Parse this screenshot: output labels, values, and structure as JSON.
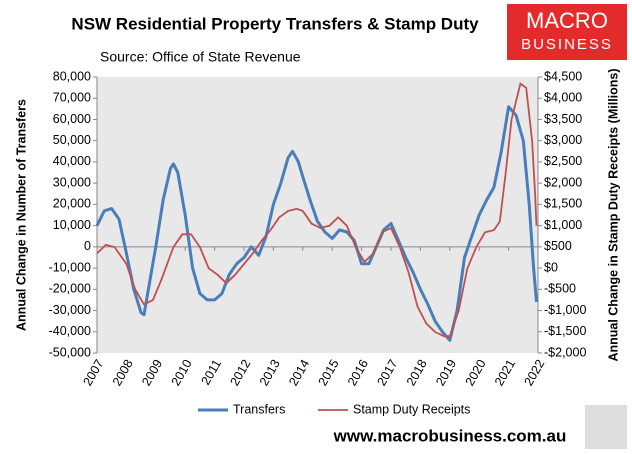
{
  "chart_data": {
    "type": "line",
    "title": "NSW Residential Property Transfers & Stamp Duty",
    "subtitle": "Source: Office of State Revenue",
    "y_label": "Annual Change in Number of Transfers",
    "y2_label": "Annual Change in Stamp Duty Receipts (Millions)",
    "logo": [
      "MACRO",
      "BUSINESS"
    ],
    "footer": "www.macrobusiness.com.au",
    "xlim": [
      2007,
      2022
    ],
    "xticks": [
      2007,
      2008,
      2009,
      2010,
      2011,
      2012,
      2013,
      2014,
      2015,
      2016,
      2017,
      2018,
      2019,
      2020,
      2021,
      2022
    ],
    "ylim": [
      -50000,
      80000
    ],
    "yticks": [
      {
        "value": -50000,
        "label": "-50,000"
      },
      {
        "value": -40000,
        "label": "-40,000"
      },
      {
        "value": -30000,
        "label": "-30,000"
      },
      {
        "value": -20000,
        "label": "-20,000"
      },
      {
        "value": -10000,
        "label": "-10,000"
      },
      0,
      {
        "value": 10000,
        "label": "10,000"
      },
      {
        "value": 20000,
        "label": "20,000"
      },
      {
        "value": 30000,
        "label": "30,000"
      },
      {
        "value": 40000,
        "label": "40,000"
      },
      {
        "value": 50000,
        "label": "50,000"
      },
      {
        "value": 60000,
        "label": "60,000"
      },
      {
        "value": 70000,
        "label": "70,000"
      },
      {
        "value": 80000,
        "label": "80,000"
      }
    ],
    "y2lim": [
      -2000,
      4500
    ],
    "y2ticks": [
      {
        "value": -2000,
        "label": "-$2,000"
      },
      {
        "value": -1500,
        "label": "-$1,500"
      },
      {
        "value": -1000,
        "label": "-$1,000"
      },
      {
        "value": -500,
        "label": "-$500"
      },
      {
        "value": 0,
        "label": "$0"
      },
      {
        "value": 500,
        "label": "$500"
      },
      {
        "value": 1000,
        "label": "$1,000"
      },
      {
        "value": 1500,
        "label": "$1,500"
      },
      {
        "value": 2000,
        "label": "$2,000"
      },
      {
        "value": 2500,
        "label": "$2,500"
      },
      {
        "value": 3000,
        "label": "$3,000"
      },
      {
        "value": 3500,
        "label": "$3,500"
      },
      {
        "value": 4000,
        "label": "$4,000"
      },
      {
        "value": 4500,
        "label": "$4,500"
      }
    ],
    "grid": false,
    "legend": "bottom",
    "series": [
      {
        "name": "Transfers",
        "color": "#4a7ebb",
        "axis": "y",
        "x": [
          2007.0,
          2007.25,
          2007.5,
          2007.75,
          2008.0,
          2008.25,
          2008.5,
          2008.6,
          2008.75,
          2009.0,
          2009.25,
          2009.5,
          2009.6,
          2009.75,
          2010.0,
          2010.25,
          2010.5,
          2010.75,
          2011.0,
          2011.25,
          2011.5,
          2011.75,
          2012.0,
          2012.25,
          2012.5,
          2012.75,
          2013.0,
          2013.25,
          2013.5,
          2013.65,
          2013.85,
          2014.0,
          2014.25,
          2014.5,
          2014.75,
          2015.0,
          2015.25,
          2015.5,
          2015.75,
          2016.0,
          2016.25,
          2016.5,
          2016.75,
          2017.0,
          2017.25,
          2017.5,
          2017.75,
          2018.0,
          2018.25,
          2018.5,
          2018.75,
          2019.0,
          2019.25,
          2019.5,
          2019.75,
          2020.0,
          2020.25,
          2020.5,
          2020.75,
          2021.0,
          2021.25,
          2021.5,
          2021.7,
          2021.85,
          2021.95
        ],
        "values": [
          10000,
          17000,
          18000,
          13000,
          -3000,
          -20000,
          -31000,
          -32000,
          -20000,
          0,
          22000,
          37000,
          39000,
          35000,
          15000,
          -10000,
          -22000,
          -25000,
          -25000,
          -22000,
          -13000,
          -8000,
          -5000,
          0,
          -4000,
          5000,
          20000,
          30000,
          42000,
          45000,
          40000,
          33000,
          22000,
          12000,
          7000,
          4000,
          8000,
          7000,
          3000,
          -8000,
          -8000,
          0,
          8000,
          11000,
          3000,
          -5000,
          -12000,
          -20000,
          -27000,
          -35000,
          -40000,
          -44000,
          -30000,
          -5000,
          5000,
          15000,
          22000,
          28000,
          45000,
          66000,
          62000,
          50000,
          20000,
          -10000,
          -26000
        ]
      },
      {
        "name": "Stamp Duty Receipts",
        "color": "#c0504d",
        "axis": "y2",
        "x": [
          2007.0,
          2007.3,
          2007.6,
          2008.0,
          2008.3,
          2008.6,
          2008.9,
          2009.2,
          2009.6,
          2009.9,
          2010.2,
          2010.5,
          2010.8,
          2011.1,
          2011.4,
          2011.7,
          2012.0,
          2012.3,
          2012.6,
          2012.9,
          2013.2,
          2013.5,
          2013.8,
          2014.0,
          2014.3,
          2014.6,
          2014.9,
          2015.2,
          2015.5,
          2015.8,
          2016.1,
          2016.4,
          2016.7,
          2017.0,
          2017.3,
          2017.6,
          2017.9,
          2018.2,
          2018.5,
          2018.8,
          2019.0,
          2019.3,
          2019.6,
          2019.9,
          2020.2,
          2020.5,
          2020.7,
          2020.9,
          2021.1,
          2021.4,
          2021.6,
          2021.8,
          2021.9,
          2021.95
        ],
        "values": [
          345,
          545,
          495,
          95,
          -505,
          -855,
          -755,
          -255,
          495,
          795,
          795,
          495,
          -5,
          -155,
          -355,
          -155,
          95,
          345,
          645,
          895,
          1195,
          1345,
          1395,
          1345,
          1045,
          945,
          995,
          1195,
          995,
          495,
          145,
          345,
          845,
          945,
          495,
          -105,
          -905,
          -1305,
          -1505,
          -1605,
          -1605,
          -1005,
          -5,
          495,
          845,
          895,
          1095,
          2245,
          3495,
          4345,
          4245,
          2995,
          1745,
          995
        ]
      }
    ]
  }
}
